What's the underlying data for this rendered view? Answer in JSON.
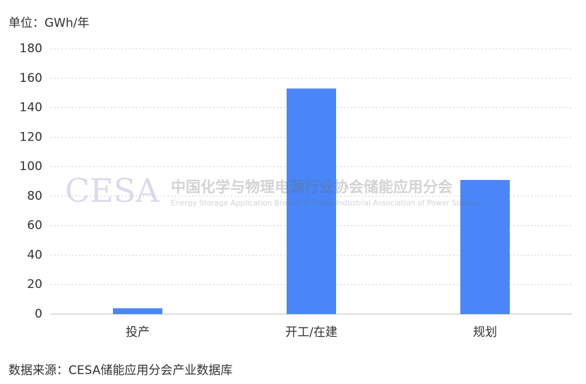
{
  "chart_data": {
    "type": "bar",
    "unit_label": "单位：GWh/年",
    "categories": [
      "投产",
      "开工/在建",
      "规划"
    ],
    "values": [
      4,
      153,
      91
    ],
    "color": "#4a86f7",
    "ylim": [
      0,
      180
    ],
    "yticks": [
      0,
      20,
      40,
      60,
      80,
      100,
      120,
      140,
      160,
      180
    ],
    "grid": true,
    "source": "数据来源：CESA储能应用分会产业数据库",
    "watermark": {
      "logo": "CESA",
      "name": "中国化学与物理电源行业协会储能应用分会",
      "english": "Energy Storage Application Branch of China Industrial Association of Power Sources"
    }
  }
}
